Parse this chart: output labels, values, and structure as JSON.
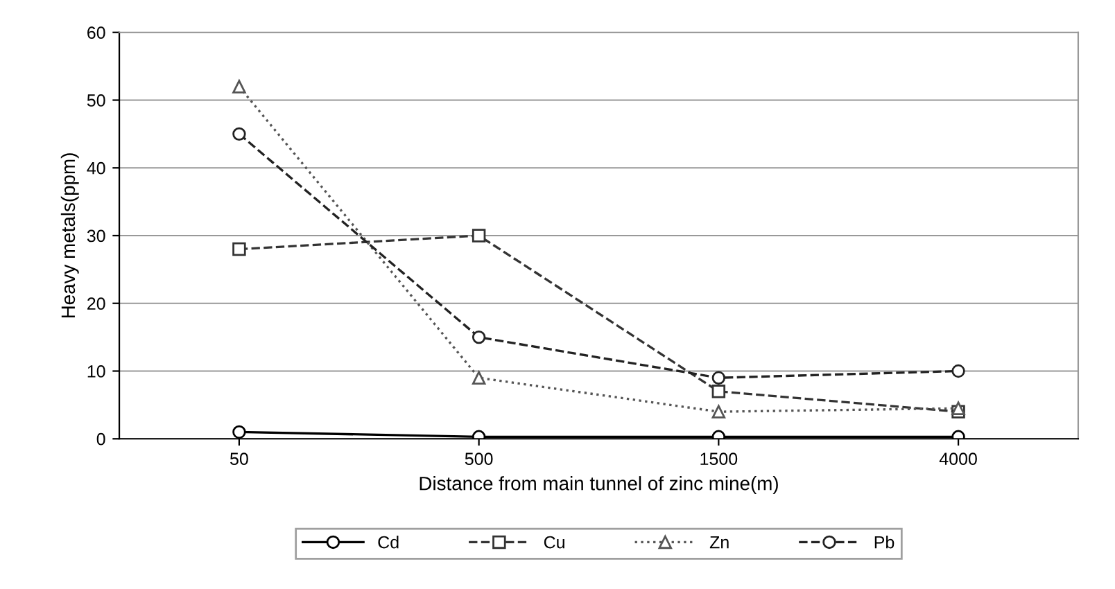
{
  "chart_data": {
    "type": "line",
    "xlabel": "Distance from main tunnel of zinc mine(m)",
    "ylabel": "Heavy metals(ppm)",
    "categories": [
      "50",
      "500",
      "1500",
      "4000"
    ],
    "ylim": [
      0,
      60
    ],
    "yticks": [
      0,
      10,
      20,
      30,
      40,
      50,
      60
    ],
    "grid": "y",
    "legend": "bottom",
    "series": [
      {
        "name": "Cd",
        "color": "#000000",
        "values": [
          1,
          0.3,
          0.3,
          0.3
        ],
        "marker": "circle",
        "line_style": "solid"
      },
      {
        "name": "Cu",
        "color": "#333333",
        "values": [
          28,
          30,
          7,
          4
        ],
        "marker": "square",
        "line_style": "dashed"
      },
      {
        "name": "Zn",
        "color": "#555555",
        "values": [
          52,
          9,
          4,
          4.5
        ],
        "marker": "triangle",
        "line_style": "dotted"
      },
      {
        "name": "Pb",
        "color": "#222222",
        "values": [
          45,
          15,
          9,
          10
        ],
        "marker": "circle",
        "line_style": "dashed"
      }
    ]
  }
}
